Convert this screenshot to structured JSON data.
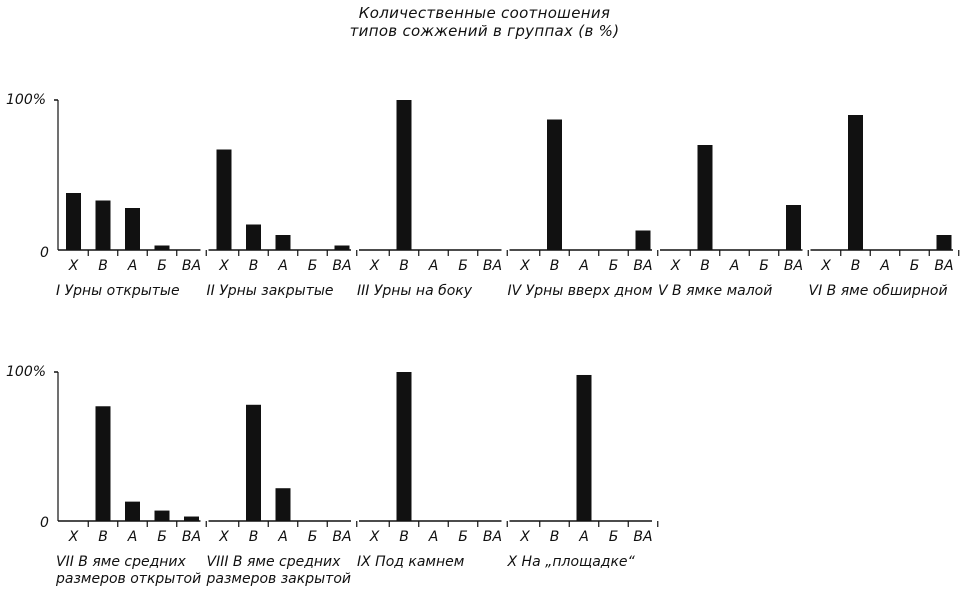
{
  "title": {
    "line1": "Количественные соотношения",
    "line2": "типов сожжений в группах (в %)"
  },
  "chart_data": {
    "type": "bar",
    "title": "Количественные соотношения типов сожжений в группах (в %)",
    "ylabel_top": "100%",
    "ylabel_zero": "0",
    "ylim": [
      0,
      100
    ],
    "categories": [
      "Х",
      "В",
      "А",
      "Б",
      "ВА"
    ],
    "rows": [
      {
        "panels": [
          {
            "label": "I Урны открытые",
            "values": [
              38,
              33,
              28,
              3,
              0
            ]
          },
          {
            "label": "II Урны закрытые",
            "values": [
              67,
              17,
              10,
              0,
              3
            ]
          },
          {
            "label": "III Урны на боку",
            "values": [
              0,
              100,
              0,
              0,
              0
            ]
          },
          {
            "label": "IV Урны вверх дном",
            "values": [
              0,
              87,
              0,
              0,
              13
            ]
          },
          {
            "label": "V В ямке малой",
            "values": [
              0,
              70,
              0,
              0,
              30
            ]
          },
          {
            "label": "VI В яме обширной",
            "values": [
              0,
              90,
              0,
              0,
              10
            ]
          }
        ]
      },
      {
        "panels": [
          {
            "label": "VII В яме средних",
            "label2": "размеров открытой",
            "values": [
              0,
              77,
              13,
              7,
              3
            ]
          },
          {
            "label": "VIII В яме средних",
            "label2": "размеров закрытой",
            "values": [
              0,
              78,
              22,
              0,
              0
            ]
          },
          {
            "label": "IX Под камнем",
            "values": [
              0,
              100,
              0,
              0,
              0
            ]
          },
          {
            "label": "X На „площадке“",
            "values": [
              0,
              0,
              98,
              0,
              0
            ]
          }
        ]
      }
    ]
  }
}
